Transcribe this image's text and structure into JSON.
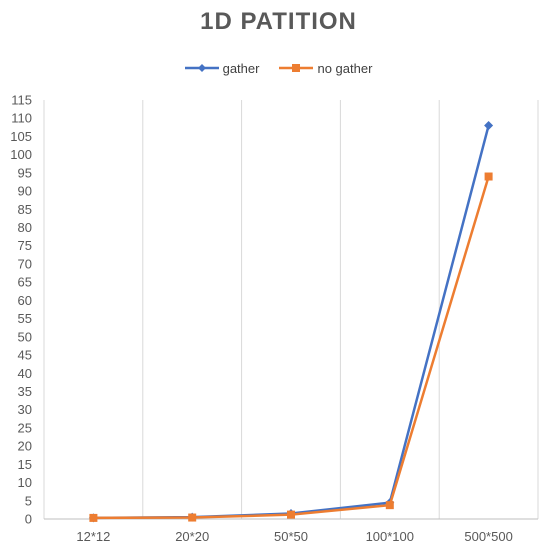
{
  "chart_data": {
    "type": "line",
    "title": "1D PATITION",
    "xlabel": "",
    "ylabel": "",
    "categories": [
      "12*12",
      "20*20",
      "50*50",
      "100*100",
      "500*500"
    ],
    "series": [
      {
        "name": "gather",
        "values": [
          0.3,
          0.5,
          1.5,
          4.5,
          108
        ],
        "color": "#4472C4",
        "marker": "diamond"
      },
      {
        "name": "no gather",
        "values": [
          0.3,
          0.4,
          1.2,
          3.8,
          94
        ],
        "color": "#ED7D31",
        "marker": "square"
      }
    ],
    "ylim": [
      0,
      115
    ],
    "ytick_step": 5,
    "y_ticks": [
      "0",
      "5",
      "10",
      "15",
      "20",
      "25",
      "30",
      "35",
      "40",
      "45",
      "50",
      "55",
      "60",
      "65",
      "70",
      "75",
      "80",
      "85",
      "90",
      "95",
      "100",
      "105",
      "110",
      "115"
    ],
    "grid": "vertical",
    "legend_position": "top"
  }
}
